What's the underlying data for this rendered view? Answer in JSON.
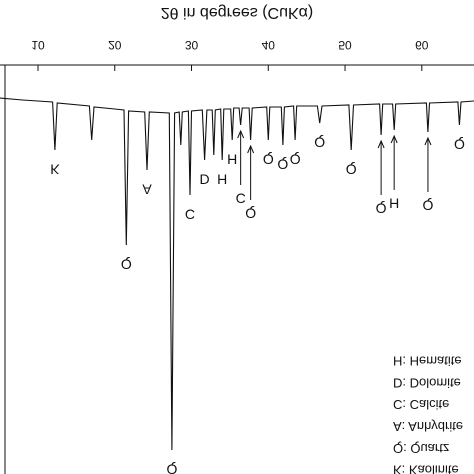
{
  "chart_data": {
    "type": "line",
    "title": "2θ in degrees (CuKα)",
    "x": [
      5.0,
      8,
      11.9,
      12.2,
      12.5,
      16.7,
      17.0,
      17.3,
      20,
      21.2,
      21.5,
      21.8,
      23.9,
      24.2,
      24.5,
      27.1,
      27.45,
      27.8,
      28.4,
      28.6,
      28.8,
      29.6,
      29.8,
      30.0,
      31.4,
      31.7,
      32.0,
      32.7,
      32.9,
      33.1,
      33.8,
      34.0,
      34.2,
      35.1,
      35.3,
      35.5,
      36.2,
      36.4,
      36.6,
      37.5,
      37.7,
      37.9,
      39.8,
      40.0,
      40.2,
      41.7,
      41.9,
      42.1,
      43.3,
      43.5,
      43.7,
      46.4,
      46.7,
      47.0,
      50.5,
      50.8,
      51.1,
      54.5,
      54.7,
      54.9,
      56.2,
      56.4,
      56.6,
      60.6,
      60.8,
      61.0,
      64.7,
      64.9,
      65.1,
      66.8
    ],
    "values": [
      3,
      5,
      7,
      55,
      8,
      11,
      45,
      12,
      14,
      15,
      150,
      16,
      17,
      75,
      17,
      18,
      355,
      18,
      17,
      50,
      17,
      16,
      100,
      16,
      15,
      65,
      15,
      15,
      60,
      15,
      14,
      65,
      14,
      14,
      45,
      13,
      13,
      30,
      13,
      13,
      45,
      13,
      12,
      45,
      12,
      12,
      50,
      12,
      11,
      45,
      11,
      11,
      28,
      11,
      10,
      55,
      10,
      9,
      40,
      9,
      9,
      35,
      9,
      8,
      37,
      8,
      7,
      30,
      7,
      6
    ],
    "color": "#111111",
    "xlim": [
      5.05,
      66.8
    ],
    "xticks": [
      10,
      20,
      30,
      40,
      50,
      60
    ],
    "ylim": [
      0,
      380
    ],
    "flipped": true,
    "annotations": [
      {
        "label": "K",
        "x": 12.2
      },
      {
        "label": "Q",
        "x": 21.5
      },
      {
        "label": "A",
        "x": 24.2
      },
      {
        "label": "Q",
        "x": 27.45
      },
      {
        "label": "C",
        "x": 29.8
      },
      {
        "label": "D",
        "x": 31.7
      },
      {
        "label": "H",
        "x": 34.0
      },
      {
        "label": "H",
        "x": 35.3
      },
      {
        "label": "C",
        "x": 36.4,
        "arrow": true
      },
      {
        "label": "Q",
        "x": 37.7,
        "arrow": true
      },
      {
        "label": "Q",
        "x": 40.0
      },
      {
        "label": "Q",
        "x": 41.9
      },
      {
        "label": "Q",
        "x": 43.5
      },
      {
        "label": "Q",
        "x": 46.7
      },
      {
        "label": "Q",
        "x": 50.8
      },
      {
        "label": "Q",
        "x": 54.7,
        "arrow": true
      },
      {
        "label": "H",
        "x": 56.4,
        "arrow": true
      },
      {
        "label": "Q",
        "x": 60.8,
        "arrow": true
      },
      {
        "label": "Q",
        "x": 64.9
      }
    ],
    "legend_items": [
      "H: Hematite",
      "D: Dolomite",
      "C: Calcite",
      "A: Anhydrite",
      "Q: Quartz",
      "K: Kaolinite"
    ]
  }
}
